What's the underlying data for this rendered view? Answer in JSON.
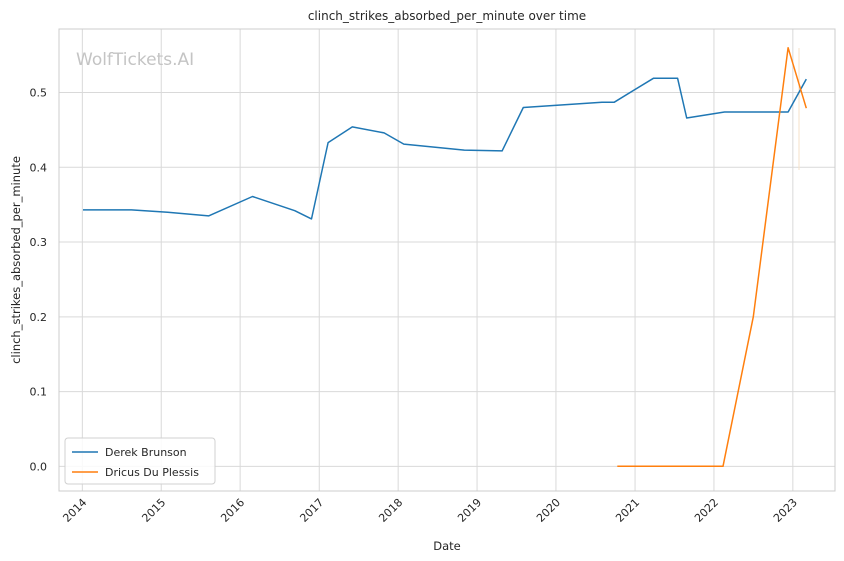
{
  "chart_data": {
    "type": "line",
    "title": "clinch_strikes_absorbed_per_minute over time",
    "xlabel": "Date",
    "ylabel": "clinch_strikes_absorbed_per_minute",
    "watermark": "WolfTickets.AI",
    "xlim": [
      "2013-09-15",
      "2023-07-15"
    ],
    "ylim": [
      -0.033,
      0.585
    ],
    "x_ticks": [
      "2014",
      "2015",
      "2016",
      "2017",
      "2018",
      "2019",
      "2020",
      "2021",
      "2022",
      "2023"
    ],
    "y_ticks": [
      "0.0",
      "0.1",
      "0.2",
      "0.3",
      "0.4",
      "0.5"
    ],
    "grid": true,
    "legend_position": "lower-left",
    "series": [
      {
        "name": "Derek Brunson",
        "color": "#1f77b4",
        "points": [
          [
            "2014-01-04",
            0.343
          ],
          [
            "2014-08-16",
            0.343
          ],
          [
            "2015-01-31",
            0.34
          ],
          [
            "2015-08-08",
            0.335
          ],
          [
            "2016-02-27",
            0.361
          ],
          [
            "2016-09-10",
            0.342
          ],
          [
            "2016-11-26",
            0.331
          ],
          [
            "2017-02-11",
            0.433
          ],
          [
            "2017-06-03",
            0.454
          ],
          [
            "2017-10-28",
            0.446
          ],
          [
            "2018-01-27",
            0.431
          ],
          [
            "2018-11-03",
            0.423
          ],
          [
            "2019-04-27",
            0.422
          ],
          [
            "2019-08-03",
            0.48
          ],
          [
            "2020-08-01",
            0.487
          ],
          [
            "2020-09-26",
            0.487
          ],
          [
            "2021-03-27",
            0.519
          ],
          [
            "2021-07-17",
            0.519
          ],
          [
            "2021-08-28",
            0.466
          ],
          [
            "2022-02-19",
            0.474
          ],
          [
            "2022-06-04",
            0.474
          ],
          [
            "2022-12-10",
            0.474
          ],
          [
            "2023-03-04",
            0.518
          ]
        ]
      },
      {
        "name": "Dricus Du Plessis",
        "color": "#ff7f0e",
        "points": [
          [
            "2020-10-11",
            0.0
          ],
          [
            "2021-03-20",
            0.0
          ],
          [
            "2021-07-10",
            0.0
          ],
          [
            "2022-02-12",
            0.0
          ],
          [
            "2022-07-02",
            0.2
          ],
          [
            "2022-12-10",
            0.56
          ],
          [
            "2023-03-04",
            0.479
          ]
        ]
      }
    ]
  }
}
